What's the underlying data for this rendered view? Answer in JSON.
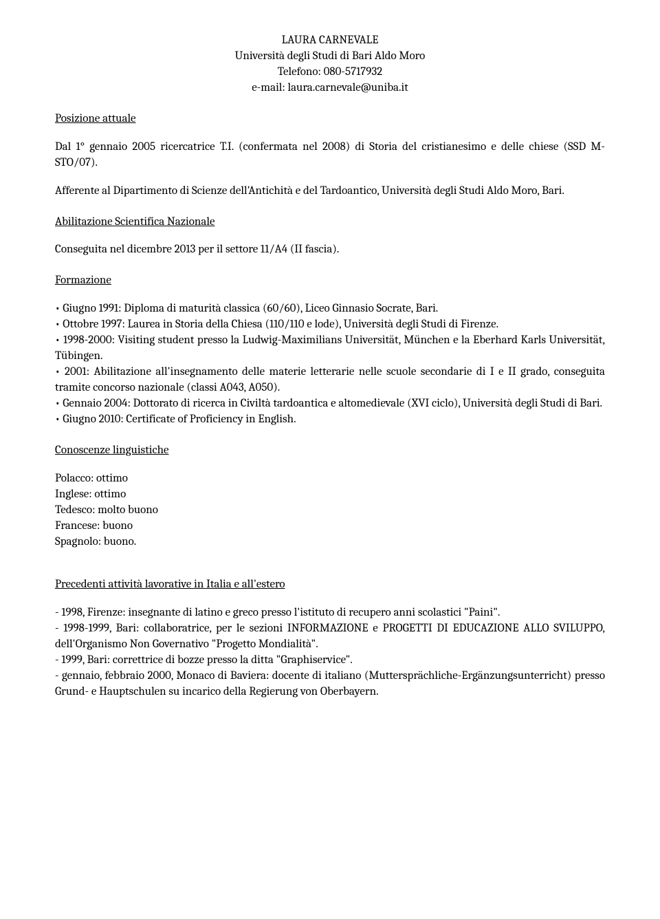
{
  "header": {
    "name": "LAURA CARNEVALE",
    "university": "Università degli Studi di Bari Aldo Moro",
    "phone": "Telefono: 080-5717932",
    "email": "e-mail: laura.carnevale@uniba.it"
  },
  "sections": {
    "posizione_heading": "Posizione attuale",
    "posizione_body1": "Dal 1° gennaio 2005 ricercatrice T.I. (confermata nel 2008) di Storia del cristianesimo e delle chiese (SSD M-STO/07).",
    "posizione_body2": "Afferente al Dipartimento di Scienze dell'Antichità e del Tardoantico, Università degli Studi Aldo Moro, Bari.",
    "abilitazione_heading": "Abilitazione Scientifica Nazionale",
    "abilitazione_body": "Conseguita nel dicembre 2013 per il settore 11/A4 (II fascia).",
    "formazione_heading": "Formazione",
    "formazione_items": [
      "• Giugno 1991: Diploma di maturità classica (60/60), Liceo Ginnasio Socrate, Bari.",
      "• Ottobre 1997: Laurea in Storia della Chiesa (110/110 e lode), Università degli Studi di Firenze.",
      "• 1998-2000: Visiting student presso la Ludwig-Maximilians Universität, München e la Eberhard Karls Universität, Tübingen.",
      "• 2001: Abilitazione all'insegnamento delle materie letterarie nelle scuole secondarie di I e II grado, conseguita tramite concorso nazionale (classi A043, A050).",
      "• Gennaio 2004: Dottorato di ricerca in Civiltà tardoantica e altomedievale (XVI ciclo), Università degli Studi di Bari.",
      "• Giugno 2010: Certificate of Proficiency in English."
    ],
    "conoscenze_heading": "Conoscenze linguistiche",
    "languages": [
      "Polacco: ottimo",
      "Inglese: ottimo",
      "Tedesco: molto buono",
      "Francese: buono",
      "Spagnolo: buono."
    ],
    "precedenti_heading": "Precedenti attività lavorative in Italia e all'estero",
    "precedenti_items": [
      "- 1998, Firenze: insegnante di latino e greco presso l'istituto di recupero anni scolastici \"Paini\".",
      "- 1998-1999, Bari: collaboratrice, per le sezioni INFORMAZIONE e PROGETTI DI EDUCAZIONE ALLO SVILUPPO, dell'Organismo Non Governativo \"Progetto Mondialità\".",
      "- 1999, Bari: correttrice di bozze presso la ditta \"Graphiservice\".",
      "- gennaio, febbraio 2000, Monaco di Baviera: docente di italiano (Muttersprächliche-Ergänzungsunterricht) presso Grund- e Hauptschulen su incarico della Regierung von Oberbayern."
    ]
  }
}
